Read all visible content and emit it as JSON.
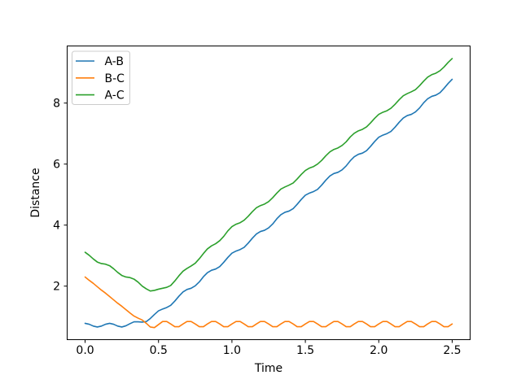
{
  "figure": {
    "background": "#ffffff"
  },
  "chart_data": {
    "type": "line",
    "title": "",
    "xlabel": "Time",
    "ylabel": "Distance",
    "xlim": [
      -0.125,
      2.625
    ],
    "ylim": [
      0.232,
      9.885
    ],
    "grid": false,
    "legend_position": "upper left",
    "legend_border_color": "#cccccc",
    "legend_background": "#ffffff",
    "axis_color": "#000000",
    "x_ticks": [
      {
        "v": 0.0,
        "label": "0.0"
      },
      {
        "v": 0.5,
        "label": "0.5"
      },
      {
        "v": 1.0,
        "label": "1.0"
      },
      {
        "v": 1.5,
        "label": "1.5"
      },
      {
        "v": 2.0,
        "label": "2.0"
      },
      {
        "v": 2.5,
        "label": "2.5"
      }
    ],
    "y_ticks": [
      {
        "v": 2,
        "label": "2"
      },
      {
        "v": 4,
        "label": "4"
      },
      {
        "v": 6,
        "label": "6"
      },
      {
        "v": 8,
        "label": "8"
      }
    ],
    "x": [
      0,
      0.028,
      0.056,
      0.083,
      0.111,
      0.139,
      0.167,
      0.194,
      0.222,
      0.25,
      0.278,
      0.306,
      0.333,
      0.361,
      0.389,
      0.417,
      0.444,
      0.472,
      0.5,
      0.528,
      0.556,
      0.583,
      0.611,
      0.639,
      0.667,
      0.694,
      0.722,
      0.75,
      0.778,
      0.806,
      0.833,
      0.861,
      0.889,
      0.917,
      0.944,
      0.972,
      1.0,
      1.028,
      1.056,
      1.083,
      1.111,
      1.139,
      1.167,
      1.194,
      1.222,
      1.25,
      1.278,
      1.306,
      1.333,
      1.361,
      1.389,
      1.417,
      1.444,
      1.472,
      1.5,
      1.528,
      1.556,
      1.583,
      1.611,
      1.639,
      1.667,
      1.694,
      1.722,
      1.75,
      1.778,
      1.806,
      1.833,
      1.861,
      1.889,
      1.917,
      1.944,
      1.972,
      2.0,
      2.028,
      2.056,
      2.083,
      2.111,
      2.139,
      2.167,
      2.194,
      2.222,
      2.25,
      2.278,
      2.306,
      2.333,
      2.361,
      2.389,
      2.417,
      2.444,
      2.472,
      2.5
    ],
    "series": [
      {
        "name": "A-B",
        "color": "#1f77b4",
        "values": [
          0.78,
          0.75,
          0.69,
          0.66,
          0.69,
          0.75,
          0.78,
          0.75,
          0.69,
          0.66,
          0.7,
          0.77,
          0.83,
          0.83,
          0.82,
          0.84,
          0.94,
          1.07,
          1.19,
          1.25,
          1.3,
          1.37,
          1.51,
          1.67,
          1.81,
          1.89,
          1.93,
          2.01,
          2.14,
          2.31,
          2.44,
          2.52,
          2.56,
          2.64,
          2.78,
          2.94,
          3.08,
          3.15,
          3.2,
          3.27,
          3.41,
          3.57,
          3.71,
          3.79,
          3.83,
          3.91,
          4.04,
          4.21,
          4.34,
          4.42,
          4.46,
          4.54,
          4.68,
          4.84,
          4.98,
          5.05,
          5.1,
          5.17,
          5.31,
          5.47,
          5.61,
          5.69,
          5.73,
          5.81,
          5.94,
          6.11,
          6.24,
          6.32,
          6.36,
          6.44,
          6.58,
          6.74,
          6.88,
          6.95,
          7.0,
          7.07,
          7.21,
          7.37,
          7.51,
          7.59,
          7.63,
          7.71,
          7.84,
          8.01,
          8.14,
          8.22,
          8.26,
          8.34,
          8.48,
          8.64,
          8.78
        ]
      },
      {
        "name": "B-C",
        "color": "#ff7f0e",
        "values": [
          2.3,
          2.19,
          2.09,
          1.98,
          1.87,
          1.77,
          1.66,
          1.55,
          1.44,
          1.34,
          1.23,
          1.12,
          1.02,
          0.95,
          0.89,
          0.78,
          0.66,
          0.64,
          0.74,
          0.84,
          0.84,
          0.76,
          0.67,
          0.67,
          0.76,
          0.84,
          0.84,
          0.76,
          0.67,
          0.67,
          0.76,
          0.84,
          0.84,
          0.76,
          0.67,
          0.67,
          0.76,
          0.84,
          0.84,
          0.76,
          0.67,
          0.67,
          0.76,
          0.84,
          0.84,
          0.76,
          0.67,
          0.67,
          0.76,
          0.84,
          0.84,
          0.76,
          0.67,
          0.67,
          0.76,
          0.84,
          0.84,
          0.76,
          0.67,
          0.67,
          0.76,
          0.84,
          0.84,
          0.76,
          0.67,
          0.67,
          0.76,
          0.84,
          0.84,
          0.76,
          0.67,
          0.67,
          0.76,
          0.84,
          0.84,
          0.76,
          0.67,
          0.67,
          0.76,
          0.84,
          0.84,
          0.76,
          0.67,
          0.67,
          0.76,
          0.84,
          0.84,
          0.76,
          0.67,
          0.67,
          0.76
        ]
      },
      {
        "name": "A-C",
        "color": "#2ca02c",
        "values": [
          3.11,
          3.01,
          2.89,
          2.79,
          2.74,
          2.72,
          2.67,
          2.57,
          2.45,
          2.35,
          2.3,
          2.28,
          2.23,
          2.13,
          2.0,
          1.91,
          1.84,
          1.86,
          1.9,
          1.93,
          1.96,
          2.02,
          2.17,
          2.34,
          2.49,
          2.58,
          2.66,
          2.75,
          2.9,
          3.07,
          3.22,
          3.32,
          3.39,
          3.49,
          3.63,
          3.81,
          3.95,
          4.03,
          4.08,
          4.16,
          4.29,
          4.44,
          4.57,
          4.64,
          4.69,
          4.77,
          4.9,
          5.05,
          5.18,
          5.25,
          5.31,
          5.38,
          5.51,
          5.66,
          5.79,
          5.87,
          5.92,
          6.0,
          6.12,
          6.27,
          6.4,
          6.48,
          6.53,
          6.61,
          6.73,
          6.89,
          7.01,
          7.09,
          7.14,
          7.22,
          7.35,
          7.5,
          7.63,
          7.7,
          7.75,
          7.83,
          7.96,
          8.11,
          8.24,
          8.31,
          8.37,
          8.44,
          8.57,
          8.72,
          8.85,
          8.93,
          8.98,
          9.06,
          9.18,
          9.33,
          9.46
        ]
      }
    ]
  }
}
